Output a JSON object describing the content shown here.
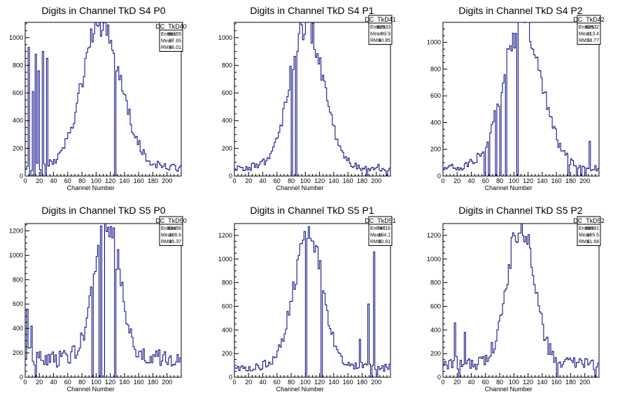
{
  "chart_data": [
    {
      "type": "histogram",
      "title": "Digits in Channel TkD S4 P0",
      "xlabel": "Channel Number",
      "ylabel": "",
      "xlim": [
        0,
        220
      ],
      "ylim": [
        0,
        1110
      ],
      "xticks": [
        0,
        20,
        40,
        60,
        80,
        100,
        120,
        140,
        160,
        180,
        200
      ],
      "yticks": [
        0,
        200,
        400,
        600,
        800,
        1000
      ],
      "stats": {
        "name": "DC_TkD40",
        "rows": [
          [
            "Entries",
            "96155"
          ],
          [
            "Mean",
            "97.65"
          ],
          [
            "RMS",
            "46.01"
          ]
        ]
      },
      "peak": {
        "center": 108,
        "height": 1040,
        "sigma": 27
      },
      "baseline": 60,
      "spikes": [
        [
          4,
          930
        ],
        [
          6,
          0
        ],
        [
          10,
          610
        ],
        [
          12,
          0
        ],
        [
          14,
          880
        ],
        [
          18,
          760
        ],
        [
          22,
          0
        ],
        [
          24,
          900
        ],
        [
          28,
          0
        ],
        [
          30,
          850
        ],
        [
          126,
          0
        ]
      ]
    },
    {
      "type": "histogram",
      "title": "Digits in Channel TkD S4 P1",
      "xlabel": "Channel Number",
      "ylabel": "",
      "xlim": [
        0,
        220
      ],
      "ylim": [
        0,
        1110
      ],
      "xticks": [
        0,
        20,
        40,
        60,
        80,
        100,
        120,
        140,
        160,
        180,
        200
      ],
      "yticks": [
        0,
        200,
        400,
        600,
        800,
        1000
      ],
      "stats": {
        "name": "DC_TkD41",
        "rows": [
          [
            "Entries",
            "82933"
          ],
          [
            "Mean",
            "99.9"
          ],
          [
            "RMS",
            "40.85"
          ]
        ]
      },
      "peak": {
        "center": 102,
        "height": 1030,
        "sigma": 24
      },
      "baseline": 55,
      "spikes": [
        [
          80,
          0
        ],
        [
          86,
          0
        ],
        [
          186,
          0
        ],
        [
          214,
          0
        ]
      ]
    },
    {
      "type": "histogram",
      "title": "Digits in Channel TkD S4 P2",
      "xlabel": "Channel Number",
      "ylabel": "",
      "xlim": [
        0,
        220
      ],
      "ylim": [
        0,
        1150
      ],
      "xticks": [
        0,
        20,
        40,
        60,
        80,
        100,
        120,
        140,
        160,
        180,
        200
      ],
      "yticks": [
        0,
        200,
        400,
        600,
        800,
        1000
      ],
      "stats": {
        "name": "DC_TkD42",
        "rows": [
          [
            "Entries",
            "62532"
          ],
          [
            "Mean",
            "113.4"
          ],
          [
            "RMS",
            "38.77"
          ]
        ]
      },
      "peak": {
        "center": 112,
        "height": 1110,
        "sigma": 27
      },
      "baseline": 60,
      "spikes": [
        [
          58,
          0
        ],
        [
          64,
          0
        ],
        [
          74,
          0
        ],
        [
          80,
          0
        ],
        [
          88,
          0
        ],
        [
          104,
          0
        ],
        [
          176,
          0
        ],
        [
          188,
          0
        ],
        [
          194,
          0
        ],
        [
          200,
          0
        ],
        [
          206,
          260
        ]
      ]
    },
    {
      "type": "histogram",
      "title": "Digits in Channel TkD S5 P0",
      "xlabel": "Channel Number",
      "ylabel": "",
      "xlim": [
        0,
        220
      ],
      "ylim": [
        0,
        1260
      ],
      "xticks": [
        0,
        20,
        40,
        60,
        80,
        100,
        120,
        140,
        160,
        180,
        200
      ],
      "yticks": [
        0,
        200,
        400,
        600,
        800,
        1000,
        1200
      ],
      "stats": {
        "name": "DC_TkD50",
        "rows": [
          [
            "Entries",
            "83456"
          ],
          [
            "Mean",
            "108.6"
          ],
          [
            "RMS",
            "45.37"
          ]
        ]
      },
      "peak": {
        "center": 115,
        "height": 1150,
        "sigma": 18
      },
      "baseline": 150,
      "spikes": [
        [
          2,
          560
        ],
        [
          8,
          420
        ],
        [
          14,
          0
        ],
        [
          20,
          210
        ],
        [
          94,
          0
        ],
        [
          104,
          0
        ],
        [
          108,
          0
        ],
        [
          110,
          0
        ],
        [
          126,
          0
        ]
      ]
    },
    {
      "type": "histogram",
      "title": "Digits in Channel TkD S5 P1",
      "xlabel": "Channel Number",
      "ylabel": "",
      "xlim": [
        0,
        220
      ],
      "ylim": [
        0,
        1300
      ],
      "xticks": [
        0,
        20,
        40,
        60,
        80,
        100,
        120,
        140,
        160,
        180,
        200
      ],
      "yticks": [
        0,
        200,
        400,
        600,
        800,
        1000,
        1200
      ],
      "stats": {
        "name": "DC_TkD51",
        "rows": [
          [
            "Entries",
            "74716"
          ],
          [
            "Mean",
            "104.1"
          ],
          [
            "RMS",
            "40.91"
          ]
        ]
      },
      "peak": {
        "center": 104,
        "height": 1170,
        "sigma": 20
      },
      "baseline": 80,
      "spikes": [
        [
          100,
          0
        ],
        [
          122,
          0
        ],
        [
          176,
          320
        ],
        [
          188,
          620
        ],
        [
          192,
          0
        ],
        [
          196,
          1060
        ],
        [
          200,
          0
        ]
      ]
    },
    {
      "type": "histogram",
      "title": "Digits in Channel TkD S5 P2",
      "xlabel": "Channel Number",
      "ylabel": "",
      "xlim": [
        0,
        220
      ],
      "ylim": [
        0,
        1300
      ],
      "xticks": [
        0,
        20,
        40,
        60,
        80,
        100,
        120,
        140,
        160,
        180,
        200
      ],
      "yticks": [
        0,
        200,
        400,
        600,
        800,
        1000,
        1200
      ],
      "stats": {
        "name": "DC_TkD52",
        "rows": [
          [
            "Entries",
            "86591"
          ],
          [
            "Mean",
            "105.5"
          ],
          [
            "RMS",
            "41.58"
          ]
        ]
      },
      "peak": {
        "center": 110,
        "height": 1200,
        "sigma": 19
      },
      "baseline": 110,
      "spikes": [
        [
          16,
          460
        ],
        [
          22,
          0
        ],
        [
          30,
          380
        ],
        [
          160,
          0
        ],
        [
          214,
          0
        ]
      ]
    }
  ],
  "colors": {
    "line": "#00007f",
    "axis": "#000000",
    "background": "#ffffff"
  }
}
